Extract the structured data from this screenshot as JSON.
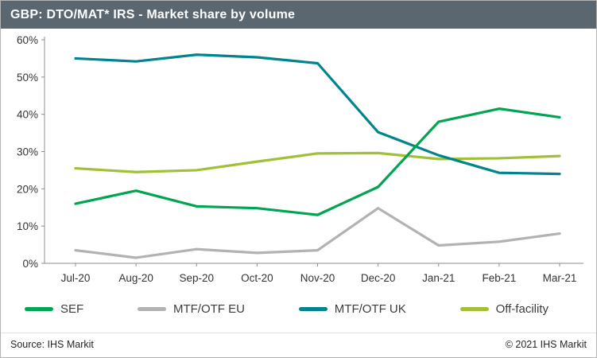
{
  "header": {
    "title": "GBP: DTO/MAT* IRS - Market share by volume"
  },
  "colors": {
    "header_bg": "#5b6770",
    "axis": "#8c8c8c"
  },
  "chart_data": {
    "type": "line",
    "title": "GBP: DTO/MAT* IRS - Market share by volume",
    "categories": [
      "Jul-20",
      "Aug-20",
      "Sep-20",
      "Oct-20",
      "Nov-20",
      "Dec-20",
      "Jan-21",
      "Feb-21",
      "Mar-21"
    ],
    "series": [
      {
        "name": "SEF",
        "color": "#00a551",
        "values": [
          16.0,
          19.5,
          15.3,
          14.8,
          13.0,
          20.5,
          38.0,
          41.5,
          39.2
        ]
      },
      {
        "name": "MTF/OTF EU",
        "color": "#b2b2b2",
        "values": [
          3.5,
          1.5,
          3.8,
          2.8,
          3.5,
          14.8,
          4.8,
          5.8,
          8.0
        ]
      },
      {
        "name": "MTF/OTF UK",
        "color": "#00848e",
        "values": [
          55.0,
          54.2,
          56.0,
          55.3,
          53.7,
          35.2,
          29.0,
          24.3,
          24.0
        ]
      },
      {
        "name": "Off-facility",
        "color": "#a2c037",
        "values": [
          25.5,
          24.5,
          25.0,
          27.3,
          29.5,
          29.6,
          28.0,
          28.2,
          28.8
        ]
      }
    ],
    "xlabel": "",
    "ylabel": "",
    "ylim": [
      0,
      60
    ],
    "ytick_step": 10,
    "ytick_suffix": "%",
    "grid": false,
    "legend_position": "bottom"
  },
  "footer": {
    "source": "Source: IHS Markit",
    "copyright": "© 2021 IHS Markit"
  }
}
